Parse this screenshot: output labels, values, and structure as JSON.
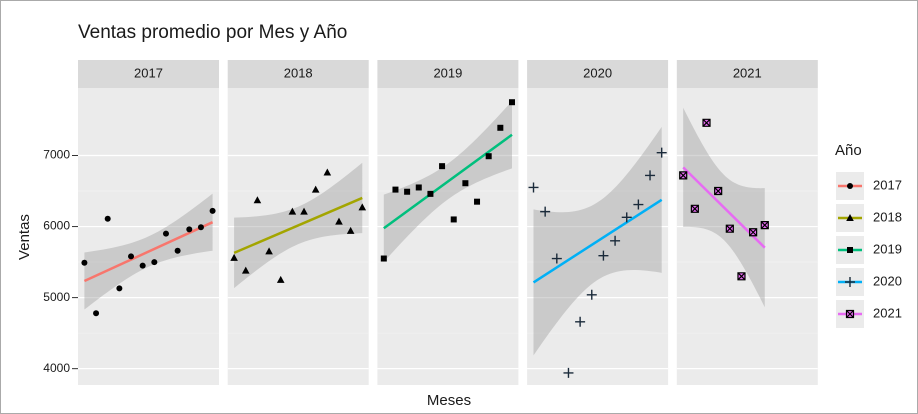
{
  "chart_data": {
    "type": "scatter",
    "title": "Ventas promedio por Mes y Año",
    "x_label": "Meses",
    "y_label": "Ventas",
    "legend_title": "Año",
    "legend_position": "right",
    "facet": true,
    "smooth": "lm",
    "grid": true,
    "xlim": [
      0.45,
      12.55
    ],
    "ylim": [
      3770,
      7950
    ],
    "yticks": [
      4000,
      5000,
      6000,
      7000
    ],
    "series": [
      {
        "name": "2017",
        "color": "#F8766D",
        "marker": "circle",
        "x": [
          1,
          2,
          3,
          4,
          5,
          6,
          7,
          8,
          9,
          10,
          11,
          12
        ],
        "values": [
          5490,
          4780,
          6110,
          5130,
          5580,
          5450,
          5500,
          5900,
          5660,
          5960,
          5990,
          6220
        ]
      },
      {
        "name": "2018",
        "color": "#A3A500",
        "marker": "triangle",
        "x": [
          1,
          2,
          3,
          4,
          5,
          6,
          7,
          8,
          9,
          10,
          11,
          12
        ],
        "values": [
          5560,
          5380,
          6370,
          5650,
          5250,
          6210,
          6210,
          6520,
          6760,
          6070,
          5940,
          6270
        ]
      },
      {
        "name": "2019",
        "color": "#00BF7D",
        "marker": "square",
        "x": [
          1,
          2,
          3,
          4,
          5,
          6,
          7,
          8,
          9,
          10,
          11,
          12
        ],
        "values": [
          5550,
          6520,
          6490,
          6550,
          6460,
          6850,
          6100,
          6610,
          6350,
          6990,
          7390,
          7750
        ]
      },
      {
        "name": "2020",
        "color": "#00B0F6",
        "marker": "plus",
        "x": [
          1,
          2,
          3,
          4,
          5,
          6,
          7,
          8,
          9,
          10,
          11,
          12
        ],
        "values": [
          6550,
          6210,
          5550,
          3940,
          4660,
          5040,
          5590,
          5800,
          6130,
          6310,
          6720,
          7040
        ]
      },
      {
        "name": "2021",
        "color": "#E76BF3",
        "marker": "boxcross",
        "x": [
          1,
          2,
          3,
          4,
          5,
          6,
          7,
          8
        ],
        "values": [
          6720,
          6250,
          7460,
          6500,
          5970,
          5300,
          5920,
          6020
        ]
      }
    ]
  }
}
